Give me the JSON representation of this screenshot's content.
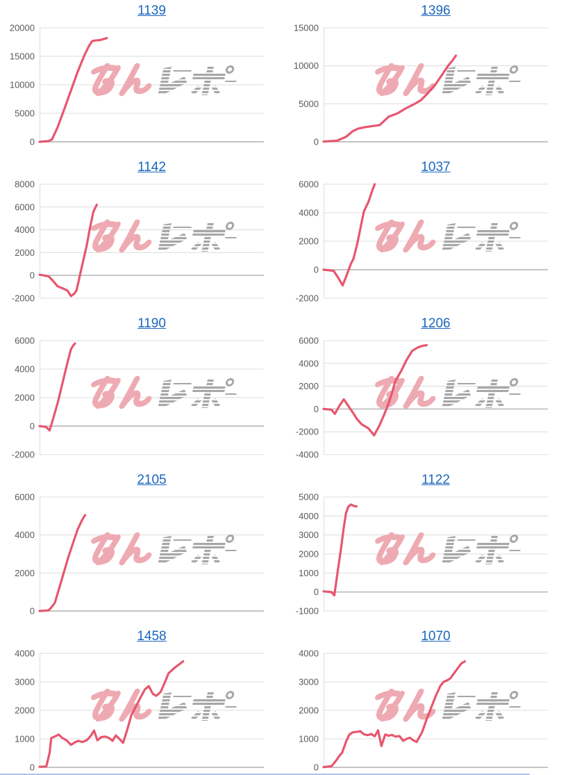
{
  "watermark": {
    "text": "みんレポ",
    "pink_color": "#eeaab2",
    "gray_color": "#a7a7a7"
  },
  "styles": {
    "line_color": "#e7566e",
    "title_color": "#1a66bd",
    "tick_label_color": "#5a5a5a",
    "gridline_color": "#dcdcdc",
    "zero_line_color": "#b1b1b1",
    "bottom_rule_color": "#aec2e2"
  },
  "chart_data": [
    {
      "type": "line",
      "title": "1139",
      "ylim": [
        0,
        20000
      ],
      "yticks": [
        0,
        5000,
        10000,
        15000,
        20000
      ],
      "grid": true,
      "legend": false,
      "points": [
        [
          0,
          0
        ],
        [
          0.04,
          120
        ],
        [
          0.055,
          400
        ],
        [
          0.08,
          2500
        ],
        [
          0.11,
          5700
        ],
        [
          0.14,
          9000
        ],
        [
          0.17,
          12300
        ],
        [
          0.2,
          15200
        ],
        [
          0.22,
          16800
        ],
        [
          0.235,
          17700
        ],
        [
          0.25,
          17780
        ],
        [
          0.27,
          17850
        ],
        [
          0.3,
          18200
        ]
      ]
    },
    {
      "type": "line",
      "title": "1396",
      "ylim": [
        0,
        15000
      ],
      "yticks": [
        0,
        5000,
        10000,
        15000
      ],
      "grid": true,
      "legend": false,
      "points": [
        [
          0,
          30
        ],
        [
          0.06,
          150
        ],
        [
          0.1,
          650
        ],
        [
          0.13,
          1400
        ],
        [
          0.155,
          1750
        ],
        [
          0.19,
          1950
        ],
        [
          0.25,
          2200
        ],
        [
          0.29,
          3300
        ],
        [
          0.33,
          3750
        ],
        [
          0.37,
          4450
        ],
        [
          0.41,
          5050
        ],
        [
          0.435,
          5500
        ],
        [
          0.465,
          6400
        ],
        [
          0.5,
          7600
        ],
        [
          0.53,
          8900
        ],
        [
          0.555,
          10000
        ],
        [
          0.575,
          10700
        ],
        [
          0.59,
          11350
        ]
      ]
    },
    {
      "type": "line",
      "title": "1142",
      "ylim": [
        -2000,
        8000
      ],
      "yticks": [
        -2000,
        0,
        2000,
        4000,
        6000,
        8000
      ],
      "grid": true,
      "legend": false,
      "points": [
        [
          0,
          60
        ],
        [
          0.04,
          -80
        ],
        [
          0.06,
          -480
        ],
        [
          0.08,
          -950
        ],
        [
          0.105,
          -1150
        ],
        [
          0.125,
          -1350
        ],
        [
          0.14,
          -1820
        ],
        [
          0.155,
          -1600
        ],
        [
          0.165,
          -1300
        ],
        [
          0.19,
          900
        ],
        [
          0.21,
          2600
        ],
        [
          0.225,
          4200
        ],
        [
          0.24,
          5600
        ],
        [
          0.255,
          6200
        ]
      ]
    },
    {
      "type": "line",
      "title": "1037",
      "ylim": [
        -2000,
        6000
      ],
      "yticks": [
        -2000,
        0,
        2000,
        4000,
        6000
      ],
      "grid": true,
      "legend": false,
      "points": [
        [
          0,
          0
        ],
        [
          0.045,
          -80
        ],
        [
          0.065,
          -560
        ],
        [
          0.085,
          -1100
        ],
        [
          0.1,
          -500
        ],
        [
          0.112,
          0
        ],
        [
          0.122,
          420
        ],
        [
          0.133,
          760
        ],
        [
          0.15,
          1800
        ],
        [
          0.168,
          3200
        ],
        [
          0.18,
          4100
        ],
        [
          0.2,
          4750
        ],
        [
          0.215,
          5450
        ],
        [
          0.228,
          6000
        ]
      ]
    },
    {
      "type": "line",
      "title": "1190",
      "ylim": [
        -2000,
        6000
      ],
      "yticks": [
        -2000,
        0,
        2000,
        4000,
        6000
      ],
      "grid": true,
      "legend": false,
      "points": [
        [
          0,
          0
        ],
        [
          0.028,
          -60
        ],
        [
          0.045,
          -300
        ],
        [
          0.062,
          600
        ],
        [
          0.082,
          1700
        ],
        [
          0.102,
          3000
        ],
        [
          0.122,
          4300
        ],
        [
          0.14,
          5400
        ],
        [
          0.15,
          5650
        ],
        [
          0.158,
          5800
        ]
      ]
    },
    {
      "type": "line",
      "title": "1206",
      "ylim": [
        -4000,
        6000
      ],
      "yticks": [
        -4000,
        -2000,
        0,
        2000,
        4000,
        6000
      ],
      "grid": true,
      "legend": false,
      "points": [
        [
          0,
          0
        ],
        [
          0.035,
          -60
        ],
        [
          0.05,
          -430
        ],
        [
          0.07,
          260
        ],
        [
          0.09,
          850
        ],
        [
          0.13,
          -300
        ],
        [
          0.15,
          -900
        ],
        [
          0.17,
          -1350
        ],
        [
          0.2,
          -1700
        ],
        [
          0.225,
          -2320
        ],
        [
          0.25,
          -1400
        ],
        [
          0.27,
          -500
        ],
        [
          0.29,
          500
        ],
        [
          0.305,
          1400
        ],
        [
          0.32,
          2450
        ],
        [
          0.345,
          3300
        ],
        [
          0.37,
          4300
        ],
        [
          0.395,
          5100
        ],
        [
          0.42,
          5400
        ],
        [
          0.44,
          5530
        ],
        [
          0.46,
          5600
        ]
      ]
    },
    {
      "type": "line",
      "title": "2105",
      "ylim": [
        0,
        6000
      ],
      "yticks": [
        0,
        2000,
        4000,
        6000
      ],
      "grid": true,
      "legend": false,
      "points": [
        [
          0,
          0
        ],
        [
          0.04,
          30
        ],
        [
          0.057,
          250
        ],
        [
          0.068,
          430
        ],
        [
          0.09,
          1300
        ],
        [
          0.11,
          2100
        ],
        [
          0.13,
          2900
        ],
        [
          0.15,
          3600
        ],
        [
          0.17,
          4300
        ],
        [
          0.19,
          4800
        ],
        [
          0.203,
          5050
        ]
      ]
    },
    {
      "type": "line",
      "title": "1122",
      "ylim": [
        -1000,
        5000
      ],
      "yticks": [
        -1000,
        0,
        1000,
        2000,
        3000,
        4000,
        5000
      ],
      "grid": true,
      "legend": false,
      "points": [
        [
          0,
          30
        ],
        [
          0.035,
          -10
        ],
        [
          0.048,
          -180
        ],
        [
          0.062,
          1000
        ],
        [
          0.078,
          2300
        ],
        [
          0.09,
          3400
        ],
        [
          0.1,
          4150
        ],
        [
          0.11,
          4480
        ],
        [
          0.122,
          4600
        ],
        [
          0.135,
          4530
        ],
        [
          0.147,
          4500
        ]
      ]
    },
    {
      "type": "line",
      "title": "1458",
      "ylim": [
        0,
        4000
      ],
      "yticks": [
        0,
        1000,
        2000,
        3000,
        4000
      ],
      "grid": true,
      "legend": false,
      "points": [
        [
          0,
          20
        ],
        [
          0.03,
          30
        ],
        [
          0.045,
          520
        ],
        [
          0.052,
          1030
        ],
        [
          0.07,
          1090
        ],
        [
          0.085,
          1150
        ],
        [
          0.1,
          1040
        ],
        [
          0.12,
          950
        ],
        [
          0.14,
          790
        ],
        [
          0.158,
          880
        ],
        [
          0.173,
          930
        ],
        [
          0.19,
          890
        ],
        [
          0.21,
          950
        ],
        [
          0.228,
          1100
        ],
        [
          0.243,
          1290
        ],
        [
          0.258,
          950
        ],
        [
          0.275,
          1060
        ],
        [
          0.293,
          1080
        ],
        [
          0.31,
          1030
        ],
        [
          0.325,
          930
        ],
        [
          0.34,
          1120
        ],
        [
          0.357,
          990
        ],
        [
          0.372,
          860
        ],
        [
          0.39,
          1300
        ],
        [
          0.41,
          1850
        ],
        [
          0.43,
          2140
        ],
        [
          0.45,
          2450
        ],
        [
          0.47,
          2740
        ],
        [
          0.487,
          2850
        ],
        [
          0.505,
          2580
        ],
        [
          0.52,
          2510
        ],
        [
          0.54,
          2650
        ],
        [
          0.557,
          2950
        ],
        [
          0.575,
          3300
        ],
        [
          0.6,
          3480
        ],
        [
          0.62,
          3600
        ],
        [
          0.64,
          3720
        ]
      ]
    },
    {
      "type": "line",
      "title": "1070",
      "ylim": [
        0,
        4000
      ],
      "yticks": [
        0,
        1000,
        2000,
        3000,
        4000
      ],
      "grid": true,
      "legend": false,
      "points": [
        [
          0,
          10
        ],
        [
          0.035,
          40
        ],
        [
          0.055,
          230
        ],
        [
          0.07,
          400
        ],
        [
          0.083,
          520
        ],
        [
          0.1,
          900
        ],
        [
          0.115,
          1150
        ],
        [
          0.13,
          1230
        ],
        [
          0.15,
          1250
        ],
        [
          0.163,
          1270
        ],
        [
          0.18,
          1160
        ],
        [
          0.197,
          1130
        ],
        [
          0.213,
          1170
        ],
        [
          0.228,
          1090
        ],
        [
          0.243,
          1300
        ],
        [
          0.258,
          750
        ],
        [
          0.275,
          1150
        ],
        [
          0.29,
          1110
        ],
        [
          0.305,
          1140
        ],
        [
          0.32,
          1080
        ],
        [
          0.338,
          1100
        ],
        [
          0.355,
          930
        ],
        [
          0.37,
          1000
        ],
        [
          0.385,
          1040
        ],
        [
          0.4,
          950
        ],
        [
          0.415,
          890
        ],
        [
          0.44,
          1250
        ],
        [
          0.46,
          1700
        ],
        [
          0.48,
          2100
        ],
        [
          0.5,
          2500
        ],
        [
          0.52,
          2850
        ],
        [
          0.535,
          3000
        ],
        [
          0.55,
          3050
        ],
        [
          0.565,
          3120
        ],
        [
          0.58,
          3280
        ],
        [
          0.6,
          3500
        ],
        [
          0.615,
          3650
        ],
        [
          0.63,
          3720
        ]
      ]
    }
  ]
}
